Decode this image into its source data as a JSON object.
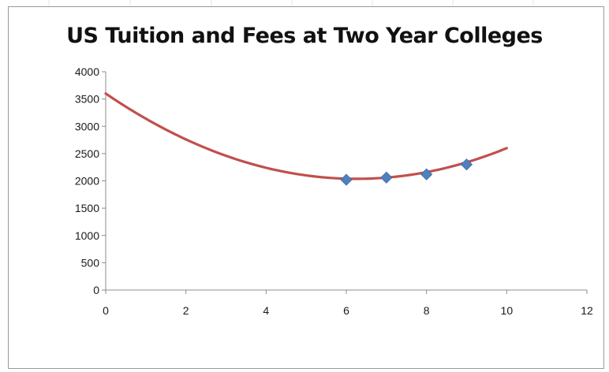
{
  "chart_data": {
    "type": "scatter",
    "title": "US Tuition and Fees at Two Year Colleges",
    "xlabel": "",
    "ylabel": "",
    "xlim": [
      0,
      12
    ],
    "ylim": [
      0,
      4000
    ],
    "x_ticks": [
      0,
      2,
      4,
      6,
      8,
      10,
      12
    ],
    "y_ticks": [
      0,
      500,
      1000,
      1500,
      2000,
      2500,
      3000,
      3500,
      4000
    ],
    "grid": false,
    "legend": "none",
    "series": [
      {
        "kind": "markers",
        "marker": "diamond",
        "color": "#4f81bd",
        "points": [
          {
            "x": 6,
            "y": 2020
          },
          {
            "x": 7,
            "y": 2060
          },
          {
            "x": 8,
            "y": 2120
          },
          {
            "x": 9,
            "y": 2300
          }
        ]
      },
      {
        "kind": "trendline",
        "type": "polynomial",
        "color": "#c0504d",
        "coefficients": [
          3600,
          -500,
          40
        ],
        "x_range": [
          0,
          10
        ]
      }
    ]
  }
}
